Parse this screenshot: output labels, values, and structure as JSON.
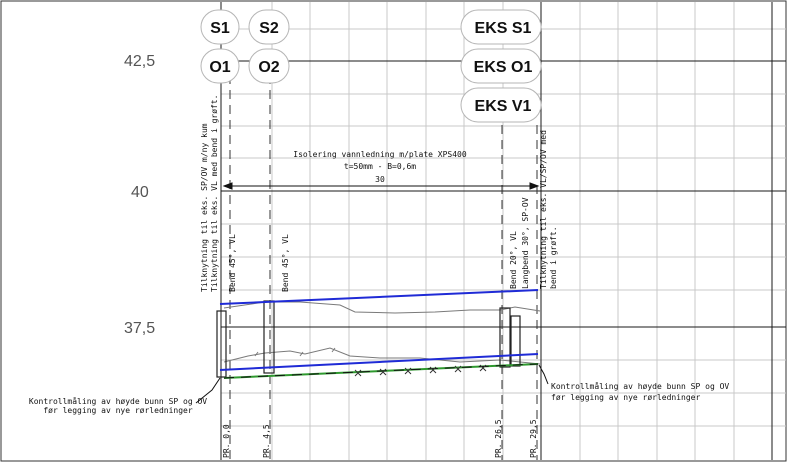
{
  "elevations": {
    "e42_5": "42,5",
    "e40": "40",
    "e37_5": "37,5"
  },
  "line_tags": {
    "s1": "S1",
    "s2": "S2",
    "o1": "O1",
    "o2": "O2",
    "eks_s1": "EKS S1",
    "eks_o1": "EKS O1",
    "eks_v1": "EKS V1"
  },
  "insulation": {
    "line1": "Isolering vannledning m/plate XPS400",
    "line2": "t=50mm - B=0,6m",
    "length": "30"
  },
  "vertical_notes": {
    "connect_left_1": "Tilknytning til eks. SP/OV m/ny kum",
    "connect_left_2": "Tilknytning til eks. VL med bend i grøft.",
    "bend_1": "Bend 45°, VL",
    "bend_2": "Bend 45°, VL",
    "bend_3": "Bend 20°, VL",
    "bend_4": "Langbend 30°, SP-OV",
    "connect_right_1": "Tilknytning til eks. VL/SP/OV med",
    "connect_right_2": "bend i grøft."
  },
  "control_notes": {
    "left_1": "Kontrollmåling av høyde bunn SP og OV",
    "left_2": "før legging av nye rørledninger",
    "right_1": "Kontrollmåling av høyde bunn SP og OV",
    "right_2": "før legging av nye rørledninger"
  },
  "profile_labels": {
    "p1": "PR. 0,0",
    "p2": "PR. 4,5",
    "p3": "PR. 26,5",
    "p4": "PR. 29,5"
  },
  "colors": {
    "grid": "#c9c9c9",
    "major_grid": "#1a1a1a",
    "water_line": "#1f2bd6",
    "sewer_line": "#2f9a2f",
    "terrain": "#7a7a7a",
    "frame": "#333333"
  }
}
